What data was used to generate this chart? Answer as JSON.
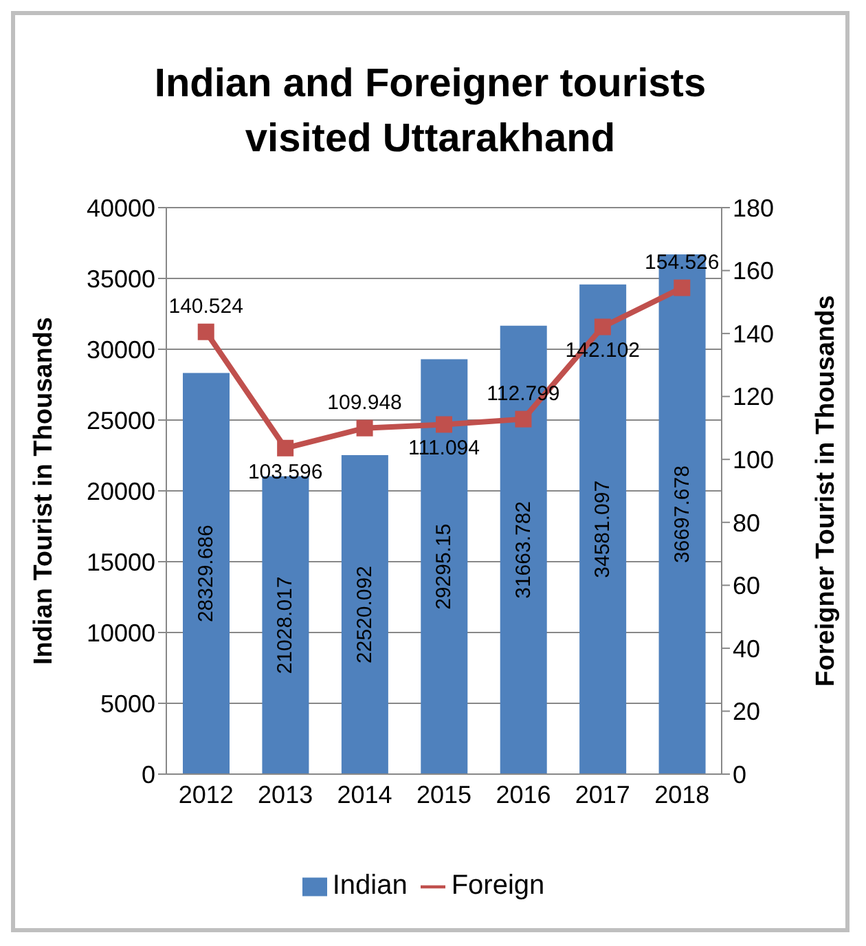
{
  "chart_data": {
    "type": "bar",
    "title": "Indian and Foreigner tourists visited Uttarakhand",
    "ylabel": "Indian Tourist in Thousands",
    "y2label": "Foreigner Tourist in Thousands",
    "categories": [
      "2012",
      "2013",
      "2014",
      "2015",
      "2016",
      "2017",
      "2018"
    ],
    "series": [
      {
        "name": "Indian",
        "color": "#4f81bd",
        "values": [
          28329.686,
          21028.017,
          22520.092,
          29295.15,
          31663.782,
          34581.097,
          36697.678
        ]
      },
      {
        "name": "Foreign",
        "type": "line",
        "axis": "y2",
        "color": "#c0504d",
        "values": [
          140.524,
          103.596,
          109.948,
          111.094,
          112.799,
          142.102,
          154.526
        ]
      }
    ],
    "ylim": [
      0,
      40000
    ],
    "yticks": [
      0,
      5000,
      10000,
      15000,
      20000,
      25000,
      30000,
      35000,
      40000
    ],
    "y2lim": [
      0,
      180
    ],
    "y2ticks": [
      0,
      20,
      40,
      60,
      80,
      100,
      120,
      140,
      160,
      180
    ],
    "grid": "y",
    "legend": "bottom",
    "marker": "square",
    "line_style": "solid",
    "data_labels": true
  }
}
